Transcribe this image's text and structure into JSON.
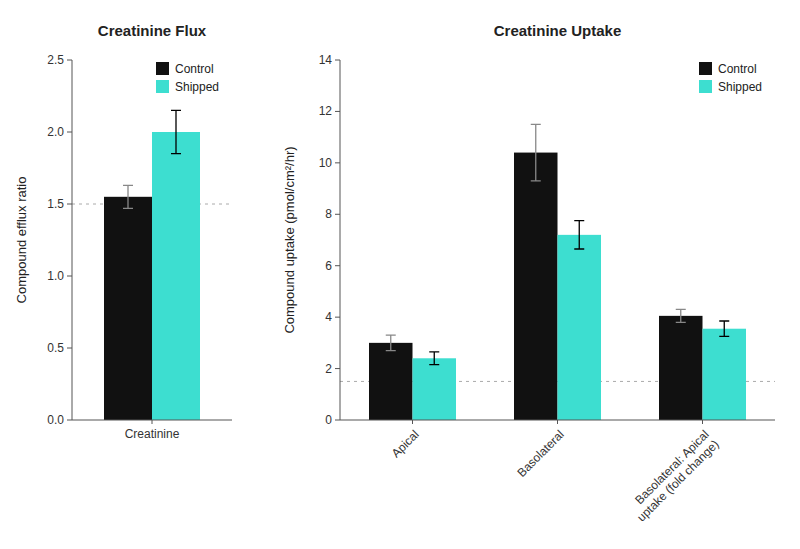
{
  "chart_data": [
    {
      "type": "bar",
      "title": "Creatinine Flux",
      "y_label": "Compound efflux ratio",
      "categories": [
        "Creatinine"
      ],
      "series": [
        {
          "name": "Control",
          "color": "#111111",
          "values": [
            1.55
          ],
          "errors": [
            0.08
          ]
        },
        {
          "name": "Shipped",
          "color": "#3DDED0",
          "values": [
            2.0
          ],
          "errors": [
            0.15
          ]
        }
      ],
      "ylim": [
        0,
        2.5
      ],
      "yticks": [
        {
          "value": 0.0,
          "label": "0.0"
        },
        0.5,
        {
          "value": 1.0,
          "label": "1.0"
        },
        1.5,
        {
          "value": 2.0,
          "label": "2.0"
        },
        2.5
      ],
      "reference_line": 1.5,
      "grid": false,
      "legend": "upper right"
    },
    {
      "type": "bar",
      "title": "Creatinine Uptake",
      "y_label": "Compound uptake (pmol/cm²/hr)",
      "categories": [
        "Apical",
        "Basolateral",
        "Basolateral: Apical\nuptake (fold change)"
      ],
      "series": [
        {
          "name": "Control",
          "color": "#111111",
          "values": [
            3.0,
            10.4,
            4.05
          ],
          "errors": [
            0.3,
            1.1,
            0.25
          ]
        },
        {
          "name": "Shipped",
          "color": "#3DDED0",
          "values": [
            2.4,
            7.2,
            3.55
          ],
          "errors": [
            0.25,
            0.55,
            0.3
          ]
        }
      ],
      "ylim": [
        0,
        14
      ],
      "yticks": [
        0,
        2,
        4,
        6,
        8,
        10,
        12,
        14
      ],
      "reference_line": 1.5,
      "grid": false,
      "legend": "upper right"
    }
  ]
}
